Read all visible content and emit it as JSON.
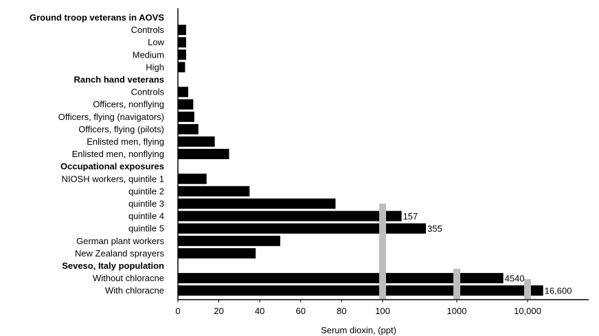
{
  "chart_data": {
    "type": "bar",
    "orientation": "horizontal",
    "xlabel": "Serum dioxin, (ppt)",
    "x_axis_scale": "linear 0-100, then log (broken axis)",
    "x_ticks": [
      "0",
      "20",
      "40",
      "60",
      "80",
      "100",
      "1000",
      "10,000"
    ],
    "break_markers": [
      100,
      1000,
      10000
    ],
    "colors": {
      "bar": "#000000",
      "break": "#bdbdbd"
    },
    "rows": [
      {
        "label": "Ground troop veterans in AOVS",
        "header": true
      },
      {
        "label": "Controls",
        "value": 4
      },
      {
        "label": "Low",
        "value": 4
      },
      {
        "label": "Medium",
        "value": 4
      },
      {
        "label": "High",
        "value": 3.5
      },
      {
        "label": "Ranch hand veterans",
        "header": true
      },
      {
        "label": "Controls",
        "value": 5
      },
      {
        "label": "Officers, nonflying",
        "value": 7.5
      },
      {
        "label": "Officers, flying (navigators)",
        "value": 8
      },
      {
        "label": "Officers, flying (pilots)",
        "value": 10
      },
      {
        "label": "Enlisted men, flying",
        "value": 18
      },
      {
        "label": "Enlisted men, nonflying",
        "value": 25
      },
      {
        "label": "Occupational exposures",
        "header": true
      },
      {
        "label": "NIOSH workers, quintile 1",
        "value": 14
      },
      {
        "label": "quintile 2",
        "value": 35
      },
      {
        "label": "quintile 3",
        "value": 77
      },
      {
        "label": "quintile 4",
        "value": 157,
        "value_label": "157"
      },
      {
        "label": "quintile 5",
        "value": 355,
        "value_label": "355"
      },
      {
        "label": "German plant workers",
        "value": 50
      },
      {
        "label": "New Zealand sprayers",
        "value": 38
      },
      {
        "label": "Seveso, Italy population",
        "header": true
      },
      {
        "label": "Without chloracne",
        "value": 4540,
        "value_label": "4540"
      },
      {
        "label": "With chloracne",
        "value": 16600,
        "value_label": "16,600"
      }
    ]
  }
}
